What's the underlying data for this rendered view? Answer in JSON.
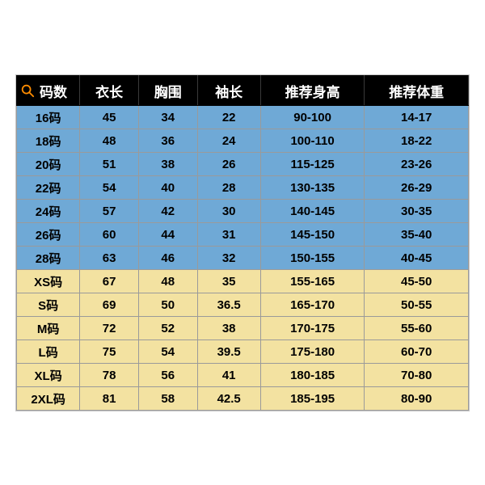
{
  "table": {
    "type": "table",
    "header_bg": "#000000",
    "header_fg": "#ffffff",
    "border_color": "#9a9a9a",
    "row_group_a_bg": "#6fa9d6",
    "row_group_b_bg": "#f3e2a1",
    "header_fontsize": 17,
    "cell_fontsize": 15,
    "search_icon_color": "#ff8c00",
    "col_widths_pct": [
      14,
      13,
      13,
      14,
      23,
      23
    ],
    "columns": [
      "码数",
      "衣长",
      "胸围",
      "袖长",
      "推荐身高",
      "推荐体重"
    ],
    "rows": [
      {
        "group": "a",
        "cells": [
          "16码",
          "45",
          "34",
          "22",
          "90-100",
          "14-17"
        ]
      },
      {
        "group": "a",
        "cells": [
          "18码",
          "48",
          "36",
          "24",
          "100-110",
          "18-22"
        ]
      },
      {
        "group": "a",
        "cells": [
          "20码",
          "51",
          "38",
          "26",
          "115-125",
          "23-26"
        ]
      },
      {
        "group": "a",
        "cells": [
          "22码",
          "54",
          "40",
          "28",
          "130-135",
          "26-29"
        ]
      },
      {
        "group": "a",
        "cells": [
          "24码",
          "57",
          "42",
          "30",
          "140-145",
          "30-35"
        ]
      },
      {
        "group": "a",
        "cells": [
          "26码",
          "60",
          "44",
          "31",
          "145-150",
          "35-40"
        ]
      },
      {
        "group": "a",
        "cells": [
          "28码",
          "63",
          "46",
          "32",
          "150-155",
          "40-45"
        ]
      },
      {
        "group": "b",
        "cells": [
          "XS码",
          "67",
          "48",
          "35",
          "155-165",
          "45-50"
        ]
      },
      {
        "group": "b",
        "cells": [
          "S码",
          "69",
          "50",
          "36.5",
          "165-170",
          "50-55"
        ]
      },
      {
        "group": "b",
        "cells": [
          "M码",
          "72",
          "52",
          "38",
          "170-175",
          "55-60"
        ]
      },
      {
        "group": "b",
        "cells": [
          "L码",
          "75",
          "54",
          "39.5",
          "175-180",
          "60-70"
        ]
      },
      {
        "group": "b",
        "cells": [
          "XL码",
          "78",
          "56",
          "41",
          "180-185",
          "70-80"
        ]
      },
      {
        "group": "b",
        "cells": [
          "2XL码",
          "81",
          "58",
          "42.5",
          "185-195",
          "80-90"
        ]
      }
    ]
  }
}
